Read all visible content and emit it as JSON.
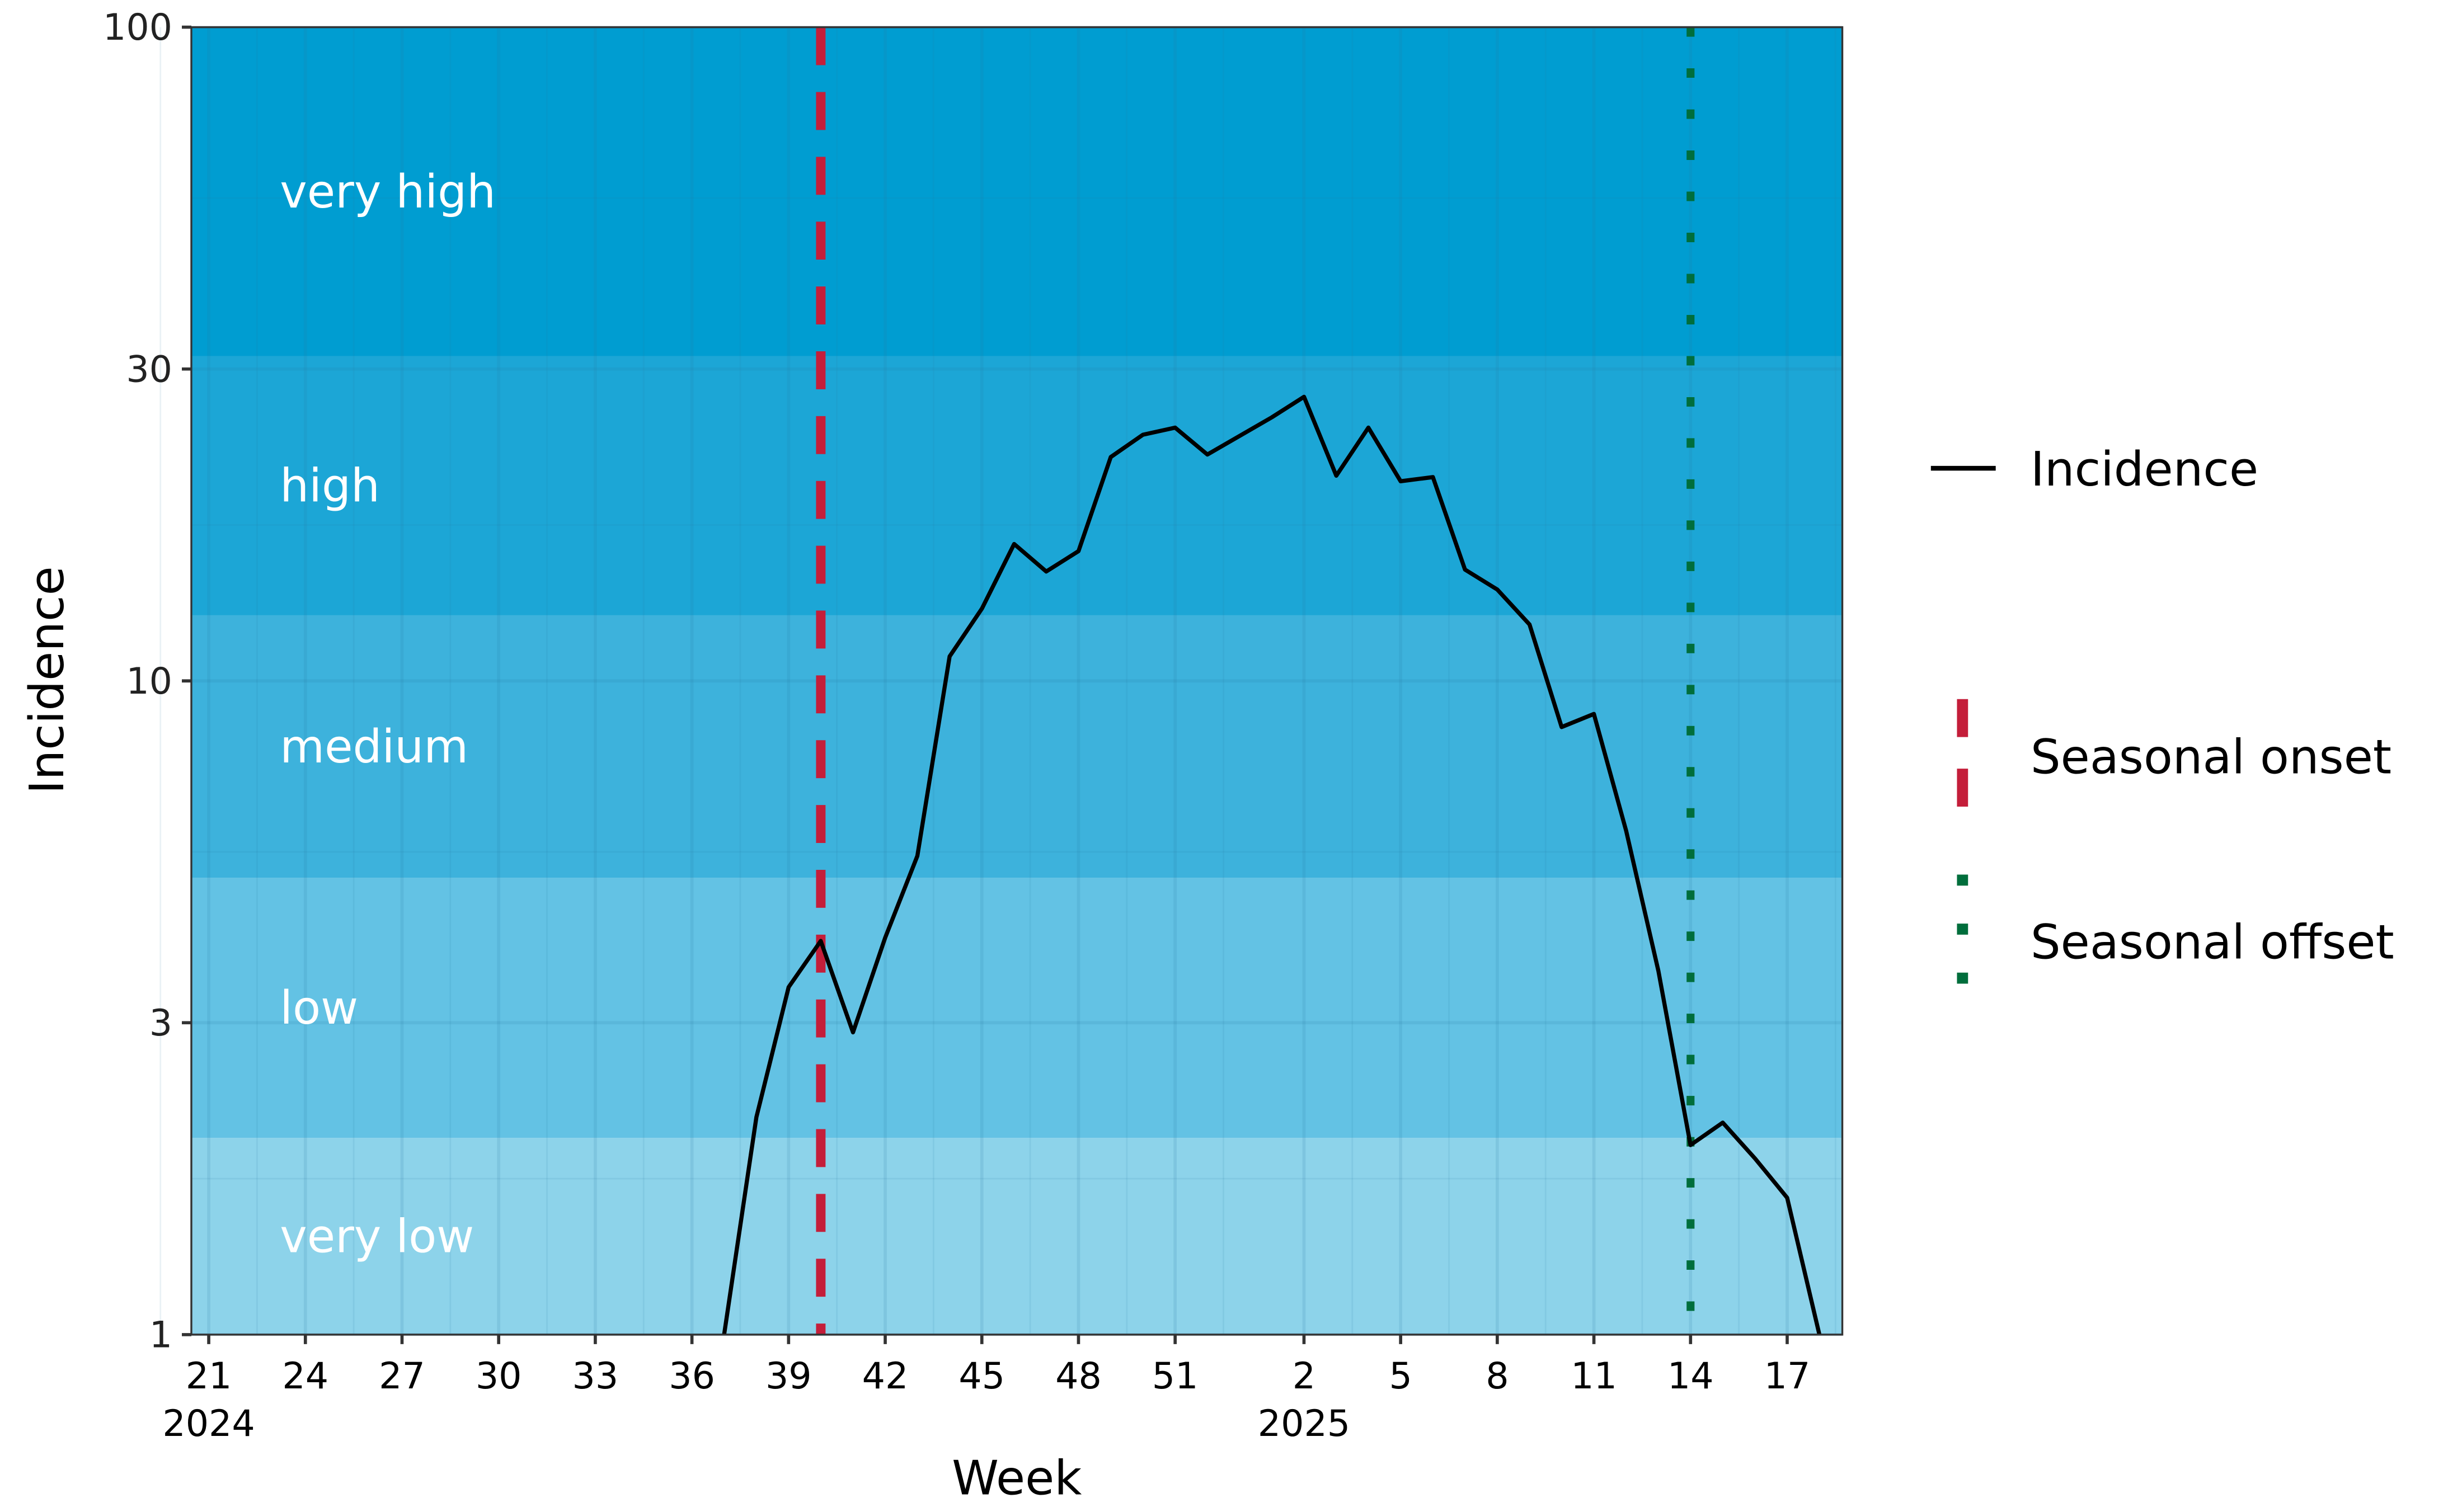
{
  "chart_data": {
    "type": "line",
    "xlabel": "Week",
    "ylabel": "Incidence",
    "y_scale": "log",
    "ylim": [
      1,
      100
    ],
    "y_ticks": [
      1,
      3,
      10,
      30,
      100
    ],
    "x_ticks": [
      {
        "year": 2024,
        "week": 21,
        "label": "21",
        "year_label": "2024"
      },
      {
        "year": 2024,
        "week": 24,
        "label": "24"
      },
      {
        "year": 2024,
        "week": 27,
        "label": "27"
      },
      {
        "year": 2024,
        "week": 30,
        "label": "30"
      },
      {
        "year": 2024,
        "week": 33,
        "label": "33"
      },
      {
        "year": 2024,
        "week": 36,
        "label": "36"
      },
      {
        "year": 2024,
        "week": 39,
        "label": "39"
      },
      {
        "year": 2024,
        "week": 42,
        "label": "42"
      },
      {
        "year": 2024,
        "week": 45,
        "label": "45"
      },
      {
        "year": 2024,
        "week": 48,
        "label": "48"
      },
      {
        "year": 2024,
        "week": 51,
        "label": "51"
      },
      {
        "year": 2025,
        "week": 2,
        "label": "2",
        "year_label": "2025"
      },
      {
        "year": 2025,
        "week": 5,
        "label": "5"
      },
      {
        "year": 2025,
        "week": 8,
        "label": "8"
      },
      {
        "year": 2025,
        "week": 11,
        "label": "11"
      },
      {
        "year": 2025,
        "week": 14,
        "label": "14"
      },
      {
        "year": 2025,
        "week": 17,
        "label": "17"
      }
    ],
    "bands": [
      {
        "label": "very low",
        "from": 1,
        "to": 2.0,
        "color": "#8dd3ea"
      },
      {
        "label": "low",
        "from": 2.0,
        "to": 5.0,
        "color": "#63c2e4"
      },
      {
        "label": "medium",
        "from": 5.0,
        "to": 12.6,
        "color": "#3db2dc"
      },
      {
        "label": "high",
        "from": 12.6,
        "to": 31.4,
        "color": "#1ca6d6"
      },
      {
        "label": "very high",
        "from": 31.4,
        "to": 100,
        "color": "#009dd1"
      }
    ],
    "series": [
      {
        "name": "Incidence",
        "color": "#000000",
        "points": [
          {
            "year": 2024,
            "week": 37,
            "value": 1.0
          },
          {
            "year": 2024,
            "week": 38,
            "value": 2.15
          },
          {
            "year": 2024,
            "week": 39,
            "value": 3.4
          },
          {
            "year": 2024,
            "week": 40,
            "value": 4.0
          },
          {
            "year": 2024,
            "week": 41,
            "value": 2.9
          },
          {
            "year": 2024,
            "week": 42,
            "value": 4.05
          },
          {
            "year": 2024,
            "week": 43,
            "value": 5.4
          },
          {
            "year": 2024,
            "week": 44,
            "value": 10.9
          },
          {
            "year": 2024,
            "week": 45,
            "value": 12.9
          },
          {
            "year": 2024,
            "week": 46,
            "value": 16.2
          },
          {
            "year": 2024,
            "week": 47,
            "value": 14.7
          },
          {
            "year": 2024,
            "week": 48,
            "value": 15.8
          },
          {
            "year": 2024,
            "week": 49,
            "value": 22.0
          },
          {
            "year": 2024,
            "week": 50,
            "value": 23.8
          },
          {
            "year": 2024,
            "week": 51,
            "value": 24.4
          },
          {
            "year": 2024,
            "week": 52,
            "value": 22.2
          },
          {
            "year": 2025,
            "week": 1,
            "value": 25.3
          },
          {
            "year": 2025,
            "week": 2,
            "value": 27.2
          },
          {
            "year": 2025,
            "week": 3,
            "value": 20.6
          },
          {
            "year": 2025,
            "week": 4,
            "value": 24.4
          },
          {
            "year": 2025,
            "week": 5,
            "value": 20.2
          },
          {
            "year": 2025,
            "week": 6,
            "value": 20.5
          },
          {
            "year": 2025,
            "week": 7,
            "value": 14.8
          },
          {
            "year": 2025,
            "week": 8,
            "value": 13.8
          },
          {
            "year": 2025,
            "week": 9,
            "value": 12.2
          },
          {
            "year": 2025,
            "week": 10,
            "value": 8.5
          },
          {
            "year": 2025,
            "week": 11,
            "value": 8.9
          },
          {
            "year": 2025,
            "week": 12,
            "value": 5.9
          },
          {
            "year": 2025,
            "week": 13,
            "value": 3.6
          },
          {
            "year": 2025,
            "week": 14,
            "value": 1.95
          },
          {
            "year": 2025,
            "week": 15,
            "value": 2.11
          },
          {
            "year": 2025,
            "week": 16,
            "value": 1.86
          },
          {
            "year": 2025,
            "week": 17,
            "value": 1.62
          },
          {
            "year": 2025,
            "week": 18,
            "value": 1.0
          }
        ]
      }
    ],
    "vlines": [
      {
        "name": "Seasonal onset",
        "year": 2024,
        "week": 40,
        "color": "#c41e3a",
        "style": "dashed"
      },
      {
        "name": "Seasonal offset",
        "year": 2025,
        "week": 14,
        "color": "#006e3c",
        "style": "dotted"
      }
    ],
    "legend": {
      "placement": "right",
      "items": [
        "Incidence",
        "Seasonal onset",
        "Seasonal offset"
      ]
    },
    "grid": true
  }
}
